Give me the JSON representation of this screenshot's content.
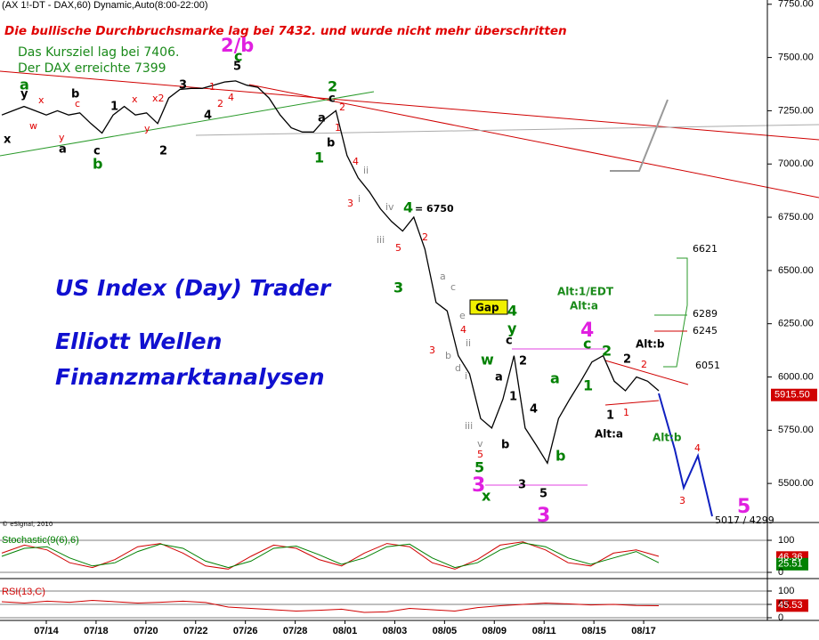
{
  "chart_data": [
    {
      "type": "line",
      "title": "(AX 1!-DT - DAX,60) Dynamic,Auto(8:00-22:00)",
      "color": "#000000",
      "values": [
        7230,
        7250,
        7270,
        7250,
        7230,
        7250,
        7230,
        7240,
        7190,
        7145,
        7230,
        7270,
        7230,
        7240,
        7190,
        7310,
        7350,
        7355,
        7355,
        7370,
        7385,
        7390,
        7370,
        7360,
        7310,
        7230,
        7170,
        7150,
        7150,
        7210,
        7250,
        7040,
        6935,
        6870,
        6790,
        6730,
        6685,
        6750,
        6600,
        6350,
        6310,
        6100,
        6015,
        5805,
        5760,
        5895,
        6100,
        5760,
        5680,
        5595,
        5805,
        5895,
        5980,
        6070,
        6100,
        5980,
        5935,
        6000,
        5980,
        5935
      ],
      "ylim": [
        5325,
        7770
      ],
      "yticks": [
        {
          "value": 7750,
          "label": "7750.00"
        },
        {
          "value": 7500,
          "label": "7500.00"
        },
        {
          "value": 7250,
          "label": "7250.00"
        },
        {
          "value": 7000,
          "label": "7000.00"
        },
        {
          "value": 6750,
          "label": "6750.00"
        },
        {
          "value": 6500,
          "label": "6500.00"
        },
        {
          "value": 6250,
          "label": "6250.00"
        },
        {
          "value": 6000,
          "label": "6000.00"
        },
        {
          "value": 5750,
          "label": "5750.00"
        },
        {
          "value": 5500,
          "label": "5500.00"
        }
      ],
      "current_price": {
        "value": 5915.5,
        "label": "5915.50"
      },
      "x_tick_labels": [
        "07/14",
        "07/18",
        "07/20",
        "07/22",
        "07/26",
        "07/28",
        "08/01",
        "08/03",
        "08/05",
        "08/09",
        "08/11",
        "08/15",
        "08/17"
      ],
      "copyright": "© eSignal, 2010"
    },
    {
      "type": "line",
      "title": "Stochastic(9(6),6)",
      "ylim": [
        0,
        100
      ],
      "yticks": [
        0,
        100
      ],
      "series": [
        {
          "color": "#d00000",
          "values": [
            60,
            85,
            70,
            30,
            15,
            40,
            80,
            90,
            60,
            20,
            10,
            50,
            85,
            75,
            40,
            20,
            60,
            90,
            80,
            30,
            10,
            40,
            85,
            95,
            70,
            30,
            20,
            60,
            70,
            50
          ],
          "last_value": 46.36
        },
        {
          "color": "#008000",
          "values": [
            50,
            75,
            80,
            45,
            20,
            30,
            65,
            88,
            75,
            35,
            15,
            35,
            75,
            82,
            55,
            25,
            45,
            80,
            88,
            45,
            15,
            30,
            70,
            92,
            80,
            45,
            25,
            45,
            65,
            30
          ],
          "last_value": 25.51
        }
      ]
    },
    {
      "type": "line",
      "title": "RSI(13,C)",
      "ylim": [
        0,
        100
      ],
      "yticks": [
        0,
        50,
        100
      ],
      "series": [
        {
          "color": "#d00000",
          "values": [
            60,
            55,
            62,
            58,
            65,
            60,
            55,
            58,
            62,
            57,
            40,
            35,
            30,
            25,
            28,
            32,
            20,
            22,
            35,
            30,
            25,
            38,
            45,
            50,
            55,
            52,
            48,
            50,
            46,
            45
          ],
          "last_value": 45.53
        }
      ]
    }
  ],
  "annotations": [
    "Die bullische Durchbruchsmarke lag bei 7432. und wurde nicht mehr überschritten",
    "Das Kursziel lag bei 7406.",
    "Der DAX erreichte 7399",
    "2/b",
    "US Index (Day) Trader",
    "Elliott Wellen",
    "Finanzmarktanalysen",
    "Gap",
    "Alt:1/EDT",
    "Alt:a",
    "Alt:b",
    "Alt:a",
    "Alt:b",
    "6621",
    "6289",
    "6245",
    "6051",
    "5017 / 4299",
    "= 6750"
  ],
  "wave_labels": [
    "a",
    "b",
    "c",
    "2",
    "1",
    "4",
    "3",
    "5",
    "x",
    "w",
    "y",
    "4",
    "c",
    "2",
    "1",
    "a",
    "b",
    "3",
    "4",
    "3",
    "5",
    "x",
    "y",
    "a",
    "b",
    "c",
    "1",
    "2",
    "3",
    "4",
    "5",
    "a",
    "b",
    "c",
    "a",
    "b",
    "c",
    "1",
    "2",
    "4",
    "3",
    "5",
    "1",
    "2",
    "x",
    "w",
    "y",
    "c",
    "x",
    "y",
    "x2",
    "1",
    "2",
    "4",
    "2",
    "1",
    "4",
    "3",
    "2",
    "5",
    "3",
    "4",
    "5",
    "2",
    "1",
    "3",
    "4",
    "ii",
    "i",
    "iv",
    "iii",
    "a",
    "c",
    "e",
    "b",
    "d",
    "ii",
    "i",
    "iii",
    "v"
  ]
}
